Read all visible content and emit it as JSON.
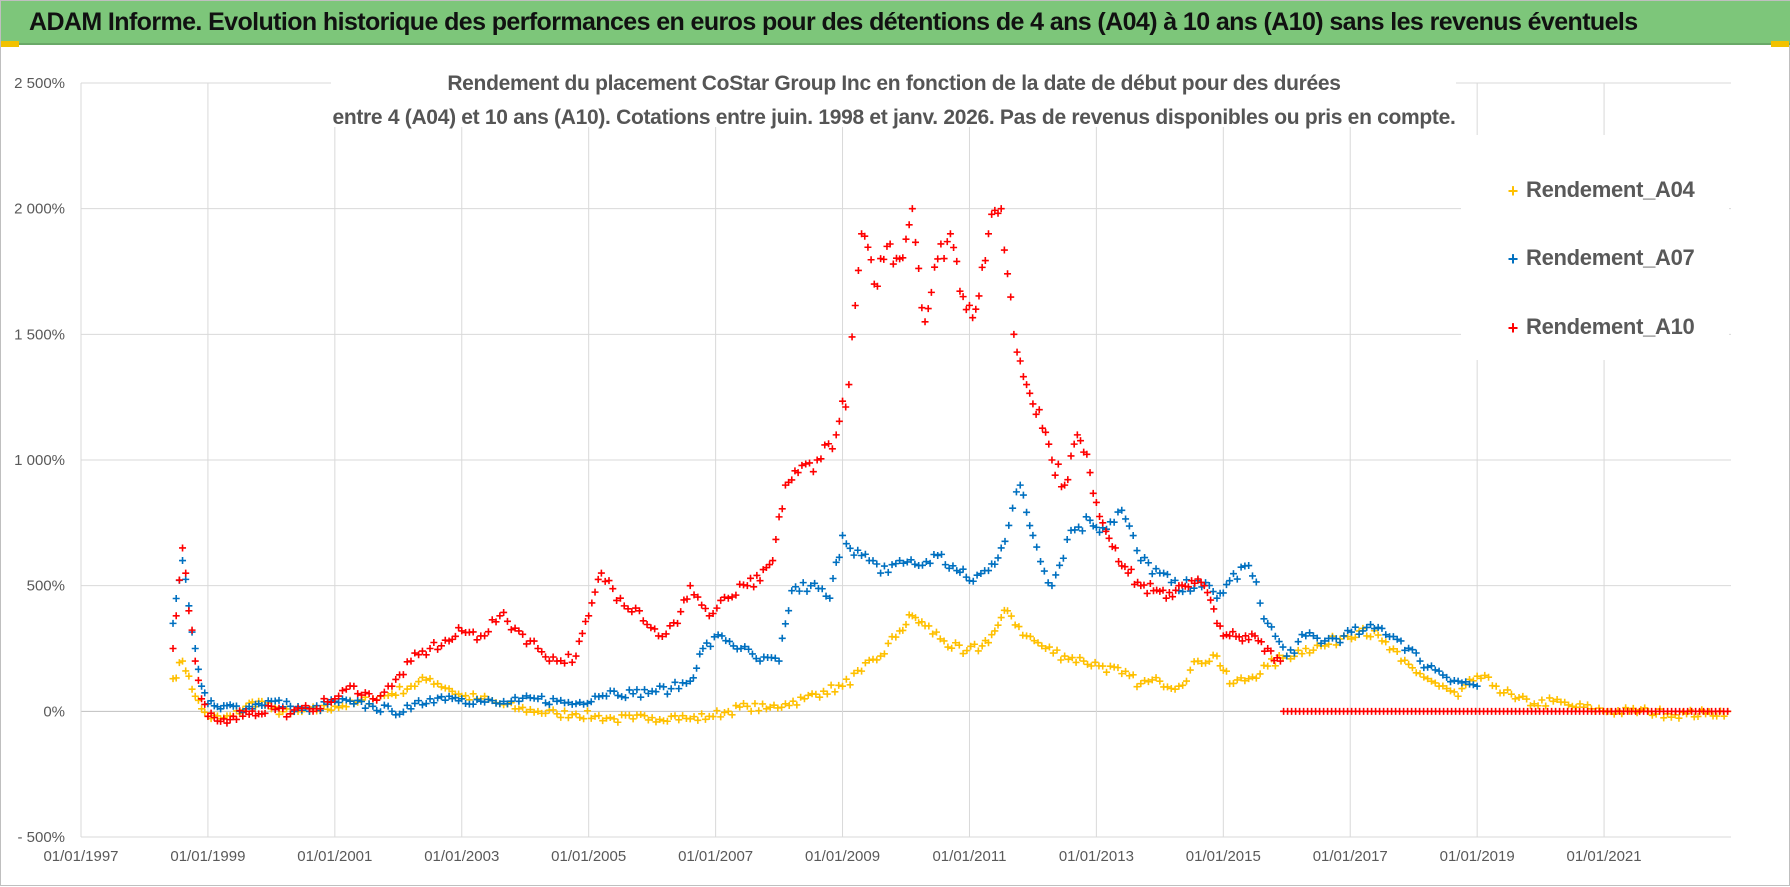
{
  "banner": {
    "title": "ADAM Informe. Evolution historique des performances en euros pour des détentions de 4 ans (A04) à 10 ans (A10) sans les revenus éventuels"
  },
  "colors": {
    "banner_bg": "#7dc67a",
    "A04": "#ffc000",
    "A07": "#0070c0",
    "A10": "#ff0000",
    "grid": "#d9d9d9"
  },
  "chart_data": {
    "type": "scatter",
    "title_line1": "Rendement du placement CoStar Group Inc en fonction de la date de début pour des durées",
    "title_line2": "entre 4 (A04) et 10 ans (A10).  Cotations entre juin. 1998 et janv. 2026. Pas de revenus disponibles ou pris en compte.",
    "xlabel": "",
    "ylabel": "",
    "x_unit": "year",
    "xlim": [
      1997.0,
      2023.0
    ],
    "ylim": [
      -500,
      2500
    ],
    "y_ticks": [
      -500,
      0,
      500,
      1000,
      1500,
      2000,
      2500
    ],
    "y_tick_labels": [
      "- 500%",
      "0%",
      "500%",
      "1 000%",
      "1 500%",
      "2 000%",
      "2 500%"
    ],
    "x_ticks": [
      1997,
      1999,
      2001,
      2003,
      2005,
      2007,
      2009,
      2011,
      2013,
      2015,
      2017,
      2019,
      2021
    ],
    "x_tick_labels": [
      "01/01/1997",
      "01/01/1999",
      "01/01/2001",
      "01/01/2003",
      "01/01/2005",
      "01/01/2007",
      "01/01/2009",
      "01/01/2011",
      "01/01/2013",
      "01/01/2015",
      "01/01/2017",
      "01/01/2019",
      "01/01/2021"
    ],
    "legend_position": "top-right",
    "series": [
      {
        "name": "Rendement_A04",
        "color": "#ffc000",
        "x": [
          1998.45,
          1998.6,
          1998.7,
          1998.8,
          1998.9,
          1999.0,
          1999.2,
          1999.4,
          1999.6,
          1999.8,
          2000.0,
          2000.3,
          2000.6,
          2001.0,
          2001.3,
          2001.6,
          2001.9,
          2002.2,
          2002.5,
          2002.8,
          2003.0,
          2003.3,
          2003.6,
          2003.9,
          2004.2,
          2004.5,
          2004.8,
          2005.1,
          2005.4,
          2005.7,
          2006.0,
          2006.3,
          2006.6,
          2006.9,
          2007.2,
          2007.5,
          2007.8,
          2008.1,
          2008.4,
          2008.7,
          2009.0,
          2009.3,
          2009.6,
          2009.9,
          2010.1,
          2010.3,
          2010.6,
          2010.9,
          2011.2,
          2011.4,
          2011.6,
          2011.9,
          2012.2,
          2012.5,
          2012.8,
          2013.1,
          2013.4,
          2013.7,
          2014.0,
          2014.3,
          2014.6,
          2014.9,
          2015.1,
          2015.4,
          2015.7,
          2016.0,
          2016.3,
          2016.6,
          2016.9,
          2017.2,
          2017.5,
          2017.8,
          2018.1,
          2018.4,
          2018.7,
          2019.0,
          2019.3,
          2019.6,
          2019.9,
          2020.2,
          2020.5,
          2020.8,
          2021.1,
          2021.4,
          2021.7,
          2022.0,
          2022.3,
          2022.6,
          2022.95
        ],
        "values": [
          130,
          200,
          140,
          60,
          10,
          -20,
          -30,
          -20,
          20,
          40,
          10,
          -10,
          0,
          20,
          30,
          50,
          70,
          100,
          130,
          90,
          60,
          50,
          30,
          10,
          0,
          -10,
          -10,
          -20,
          -30,
          -30,
          -25,
          -20,
          -30,
          -20,
          0,
          20,
          10,
          30,
          50,
          80,
          100,
          160,
          220,
          320,
          380,
          340,
          280,
          230,
          260,
          320,
          400,
          300,
          250,
          220,
          200,
          180,
          150,
          110,
          120,
          100,
          200,
          220,
          110,
          130,
          180,
          220,
          250,
          260,
          300,
          330,
          280,
          200,
          150,
          100,
          60,
          140,
          100,
          50,
          30,
          40,
          20,
          10,
          0,
          0,
          0,
          -10,
          -10,
          -10,
          0
        ]
      },
      {
        "name": "Rendement_A07",
        "color": "#0070c0",
        "x": [
          1998.45,
          1998.6,
          1998.7,
          1998.8,
          1998.9,
          1999.0,
          1999.2,
          1999.4,
          1999.6,
          1999.8,
          2000.0,
          2000.3,
          2000.6,
          2001.0,
          2001.3,
          2001.6,
          2001.9,
          2002.2,
          2002.5,
          2002.8,
          2003.0,
          2003.3,
          2003.6,
          2003.9,
          2004.2,
          2004.5,
          2004.8,
          2005.1,
          2005.4,
          2005.7,
          2006.0,
          2006.3,
          2006.6,
          2006.8,
          2007.1,
          2007.4,
          2007.7,
          2008.0,
          2008.2,
          2008.5,
          2008.8,
          2009.0,
          2009.3,
          2009.6,
          2009.9,
          2010.2,
          2010.5,
          2010.8,
          2011.0,
          2011.3,
          2011.5,
          2011.8,
          2012.0,
          2012.3,
          2012.6,
          2012.9,
          2013.1,
          2013.4,
          2013.7,
          2014.0,
          2014.3,
          2014.6,
          2014.9,
          2015.1,
          2015.4,
          2015.7,
          2016.0,
          2016.3,
          2016.6,
          2016.9,
          2017.2,
          2017.5,
          2017.8,
          2018.1,
          2018.4,
          2018.7,
          2019.0
        ],
        "values": [
          350,
          600,
          420,
          250,
          100,
          30,
          10,
          20,
          10,
          30,
          40,
          20,
          0,
          40,
          30,
          20,
          0,
          10,
          50,
          60,
          50,
          40,
          30,
          40,
          50,
          40,
          30,
          60,
          80,
          70,
          80,
          90,
          120,
          250,
          300,
          250,
          200,
          200,
          480,
          500,
          450,
          700,
          620,
          550,
          600,
          580,
          620,
          560,
          520,
          560,
          650,
          900,
          700,
          500,
          720,
          760,
          730,
          800,
          600,
          550,
          480,
          520,
          450,
          520,
          580,
          350,
          220,
          300,
          280,
          300,
          320,
          330,
          280,
          200,
          160,
          120,
          100
        ]
      },
      {
        "name": "Rendement_A10",
        "color": "#ff0000",
        "x": [
          1998.45,
          1998.6,
          1998.7,
          1998.8,
          1998.9,
          1999.0,
          1999.2,
          1999.4,
          1999.6,
          1999.8,
          2000.0,
          2000.3,
          2000.6,
          2001.0,
          2001.3,
          2001.6,
          2001.9,
          2002.2,
          2002.5,
          2002.8,
          2003.0,
          2003.3,
          2003.6,
          2003.9,
          2004.2,
          2004.5,
          2004.8,
          2005.0,
          2005.2,
          2005.5,
          2005.8,
          2006.1,
          2006.4,
          2006.6,
          2006.9,
          2007.2,
          2007.5,
          2007.7,
          2007.9,
          2008.1,
          2008.3,
          2008.6,
          2008.9,
          2009.1,
          2009.3,
          2009.5,
          2009.7,
          2009.9,
          2010.1,
          2010.3,
          2010.5,
          2010.7,
          2010.9,
          2011.1,
          2011.3,
          2011.5,
          2011.7,
          2011.9,
          2012.1,
          2012.3,
          2012.5,
          2012.7,
          2012.9,
          2013.1,
          2013.3,
          2013.5,
          2013.7,
          2013.9,
          2014.1,
          2014.3,
          2014.5,
          2014.7,
          2014.9,
          2015.1,
          2015.3,
          2015.5,
          2015.7,
          2015.9
        ],
        "values": [
          250,
          650,
          400,
          200,
          50,
          -20,
          -40,
          -20,
          0,
          -10,
          20,
          -10,
          10,
          50,
          100,
          50,
          100,
          200,
          250,
          280,
          320,
          300,
          380,
          320,
          250,
          200,
          220,
          380,
          550,
          450,
          400,
          300,
          350,
          500,
          380,
          450,
          500,
          520,
          600,
          900,
          950,
          1000,
          1100,
          1300,
          1900,
          1700,
          1850,
          1800,
          2000,
          1550,
          1800,
          1900,
          1650,
          1600,
          1900,
          2000,
          1500,
          1300,
          1200,
          1000,
          900,
          1100,
          950,
          750,
          650,
          550,
          500,
          480,
          450,
          500,
          520,
          500,
          350,
          300,
          280,
          300,
          250,
          200
        ]
      },
      {
        "name": "Rendement_A10_flat",
        "legend": false,
        "color": "#ff0000",
        "x_range": [
          2015.95,
          2022.95
        ],
        "value": 0
      }
    ]
  },
  "legend": {
    "items": [
      "Rendement_A04",
      "Rendement_A07",
      "Rendement_A10"
    ]
  }
}
